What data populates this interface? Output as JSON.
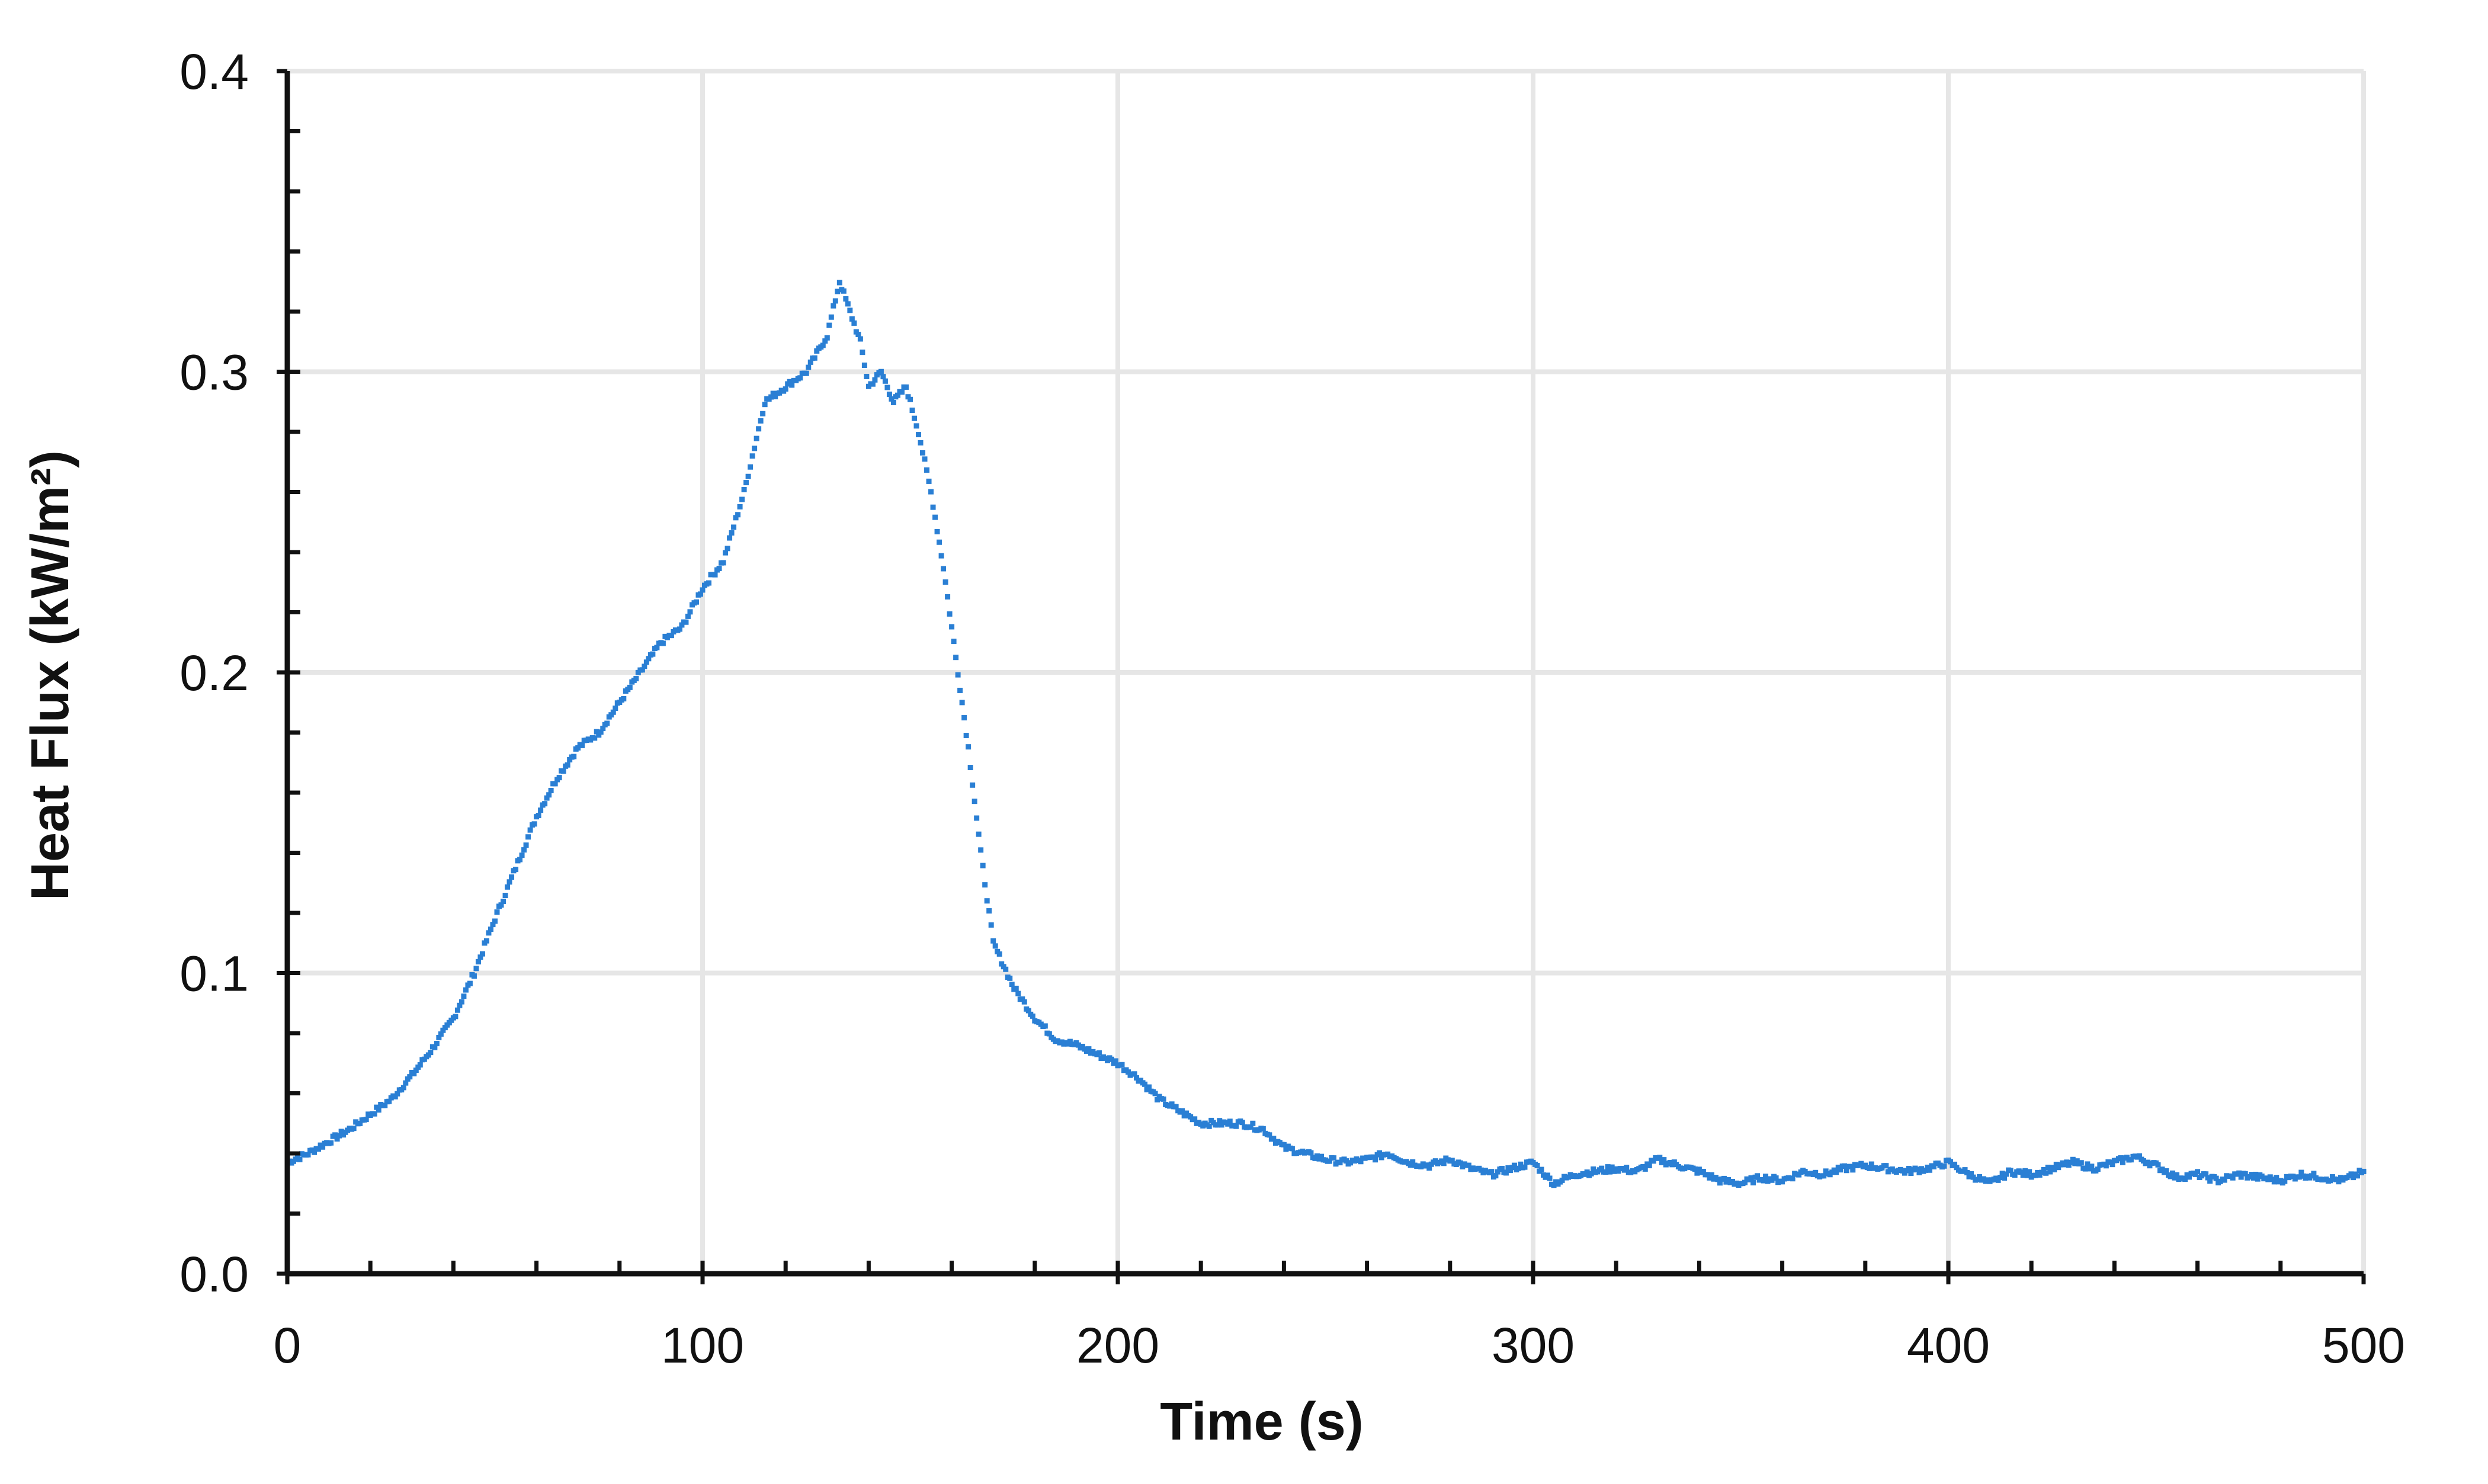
{
  "chart_data": {
    "type": "scatter",
    "title": "",
    "xlabel": "Time (s)",
    "ylabel": "Heat Flux (kW/m²)",
    "xlim": [
      0,
      500
    ],
    "ylim": [
      0,
      0.4
    ],
    "x_ticks": [
      "0",
      "100",
      "200",
      "300",
      "400",
      "500"
    ],
    "y_ticks": [
      "0.0",
      "0.1",
      "0.2",
      "0.3",
      "0.4"
    ],
    "grid": true,
    "legend": "none",
    "marker_color": "#2A7FD4",
    "gridline_color": "#E6E6E6",
    "series": [
      {
        "x": [
          0,
          5,
          10,
          15,
          20,
          25,
          30,
          35,
          40,
          45,
          50,
          55,
          60,
          65,
          70,
          75,
          80,
          85,
          90,
          95,
          100,
          105,
          110,
          115,
          120,
          125,
          130,
          133,
          135,
          138,
          140,
          143,
          146,
          149,
          152,
          155,
          158,
          161,
          164,
          167,
          170,
          175,
          180,
          185,
          190,
          195,
          200,
          205,
          210,
          215,
          220,
          225,
          230,
          235,
          240,
          245,
          250,
          255,
          260,
          265,
          270,
          275,
          280,
          285,
          290,
          295,
          300,
          305,
          310,
          315,
          320,
          325,
          330,
          335,
          340,
          345,
          350,
          355,
          360,
          365,
          370,
          375,
          380,
          385,
          390,
          395,
          400,
          405,
          410,
          415,
          420,
          425,
          430,
          435,
          440,
          445,
          450,
          455,
          460,
          465,
          470,
          475,
          480,
          485,
          490,
          495,
          500
        ],
        "y": [
          0.037,
          0.04,
          0.044,
          0.048,
          0.053,
          0.058,
          0.066,
          0.075,
          0.085,
          0.1,
          0.118,
          0.135,
          0.152,
          0.165,
          0.175,
          0.18,
          0.19,
          0.2,
          0.21,
          0.215,
          0.228,
          0.237,
          0.26,
          0.29,
          0.295,
          0.3,
          0.312,
          0.33,
          0.322,
          0.31,
          0.295,
          0.3,
          0.29,
          0.295,
          0.28,
          0.26,
          0.235,
          0.205,
          0.175,
          0.14,
          0.11,
          0.095,
          0.085,
          0.078,
          0.076,
          0.073,
          0.07,
          0.065,
          0.058,
          0.054,
          0.05,
          0.05,
          0.05,
          0.048,
          0.042,
          0.04,
          0.038,
          0.037,
          0.038,
          0.04,
          0.037,
          0.036,
          0.038,
          0.035,
          0.033,
          0.035,
          0.037,
          0.03,
          0.033,
          0.034,
          0.035,
          0.034,
          0.038,
          0.036,
          0.034,
          0.031,
          0.03,
          0.032,
          0.031,
          0.034,
          0.033,
          0.035,
          0.036,
          0.035,
          0.034,
          0.035,
          0.037,
          0.033,
          0.03,
          0.034,
          0.033,
          0.035,
          0.037,
          0.035,
          0.037,
          0.039,
          0.036,
          0.032,
          0.033,
          0.031,
          0.033,
          0.032,
          0.031,
          0.033,
          0.032,
          0.031,
          0.034
        ]
      }
    ]
  }
}
